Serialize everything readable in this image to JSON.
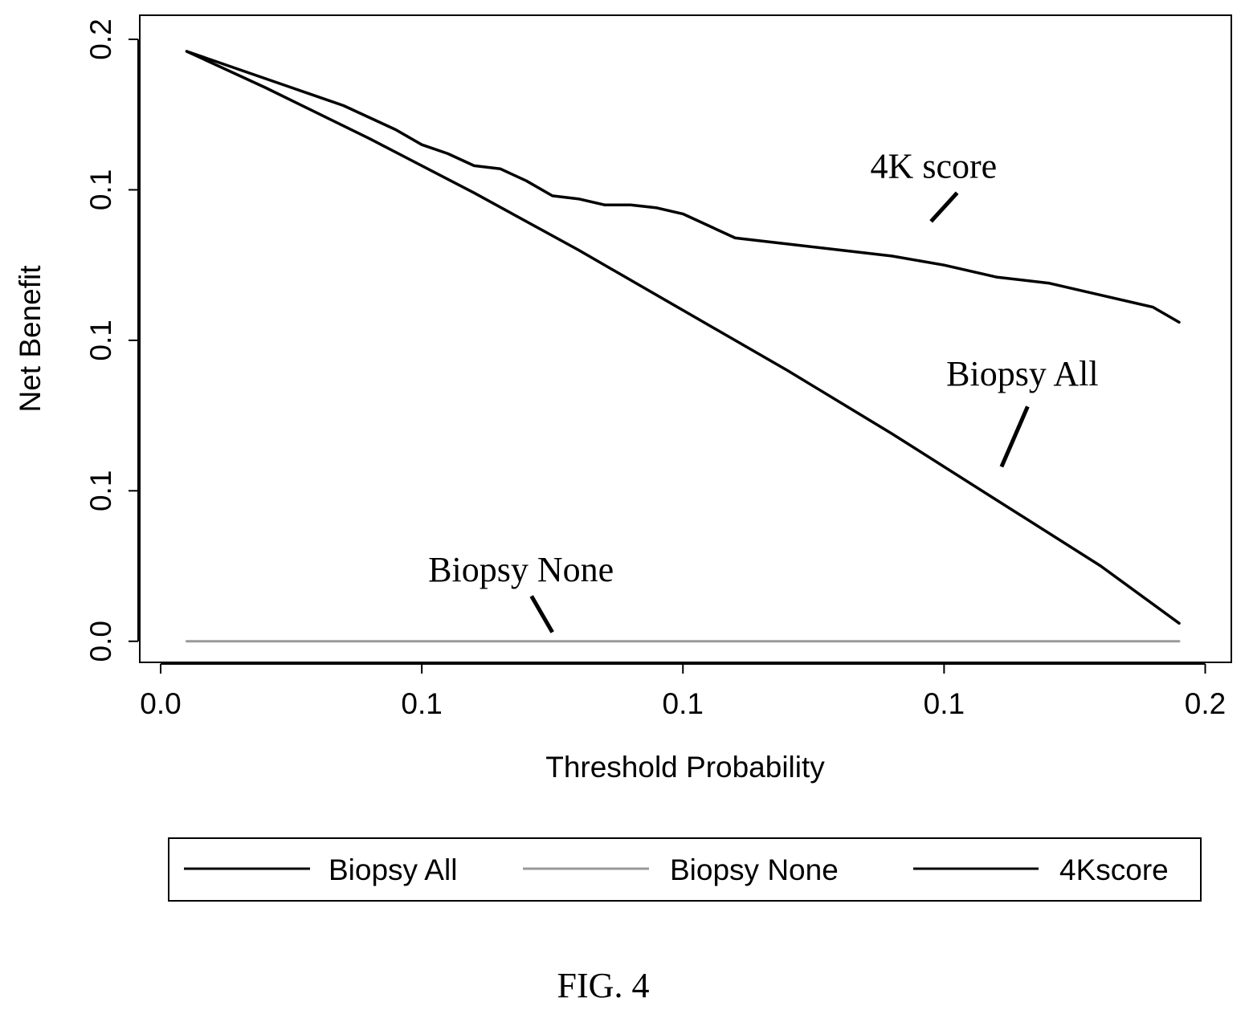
{
  "chart_data": {
    "type": "line",
    "xlabel": "Threshold Probability",
    "ylabel": "Net Benefit",
    "x_ticks": [
      0.0,
      0.05,
      0.1,
      0.15,
      0.2
    ],
    "x_tick_labels": [
      "0.0",
      "0.1",
      "0.1",
      "0.1",
      "0.2"
    ],
    "y_ticks": [
      0.0,
      0.05,
      0.1,
      0.15,
      0.2
    ],
    "y_tick_labels": [
      "0.0",
      "0.1",
      "0.1",
      "0.1",
      "0.2"
    ],
    "xlim": [
      -0.004,
      0.205
    ],
    "ylim": [
      -0.007,
      0.208
    ],
    "grid": false,
    "legend_position": "bottom",
    "series": [
      {
        "name": "Biopsy All",
        "color": "#000000",
        "x": [
          0.005,
          0.02,
          0.04,
          0.06,
          0.08,
          0.1,
          0.12,
          0.14,
          0.16,
          0.18,
          0.195
        ],
        "y": [
          0.196,
          0.184,
          0.167,
          0.149,
          0.13,
          0.11,
          0.09,
          0.069,
          0.047,
          0.025,
          0.006
        ]
      },
      {
        "name": "Biopsy None",
        "color": "#999999",
        "x": [
          0.005,
          0.195
        ],
        "y": [
          0.0,
          0.0
        ]
      },
      {
        "name": "4Kscore",
        "color": "#000000",
        "x": [
          0.005,
          0.015,
          0.025,
          0.035,
          0.045,
          0.05,
          0.055,
          0.06,
          0.065,
          0.07,
          0.075,
          0.08,
          0.085,
          0.09,
          0.095,
          0.1,
          0.105,
          0.11,
          0.12,
          0.13,
          0.14,
          0.15,
          0.16,
          0.17,
          0.18,
          0.19,
          0.195
        ],
        "y": [
          0.196,
          0.19,
          0.184,
          0.178,
          0.17,
          0.165,
          0.162,
          0.158,
          0.157,
          0.153,
          0.148,
          0.147,
          0.145,
          0.145,
          0.144,
          0.142,
          0.138,
          0.134,
          0.132,
          0.13,
          0.128,
          0.125,
          0.121,
          0.119,
          0.115,
          0.111,
          0.106
        ]
      }
    ],
    "annotations": [
      {
        "text": "4K score",
        "x": 0.148,
        "y": 0.154,
        "line": [
          [
            0.1525,
            0.149
          ],
          [
            0.1475,
            0.1395
          ]
        ]
      },
      {
        "text": "Biopsy All",
        "x": 0.165,
        "y": 0.085,
        "line": [
          [
            0.166,
            0.078
          ],
          [
            0.161,
            0.058
          ]
        ]
      },
      {
        "text": "Biopsy None",
        "x": 0.069,
        "y": 0.02,
        "line": [
          [
            0.071,
            0.015
          ],
          [
            0.075,
            0.003
          ]
        ]
      }
    ]
  },
  "legend": {
    "items": [
      {
        "label": "Biopsy All",
        "color": "#000000"
      },
      {
        "label": "Biopsy None",
        "color": "#999999"
      },
      {
        "label": "4Kscore",
        "color": "#000000"
      }
    ]
  },
  "figure": {
    "caption": "FIG. 4"
  }
}
